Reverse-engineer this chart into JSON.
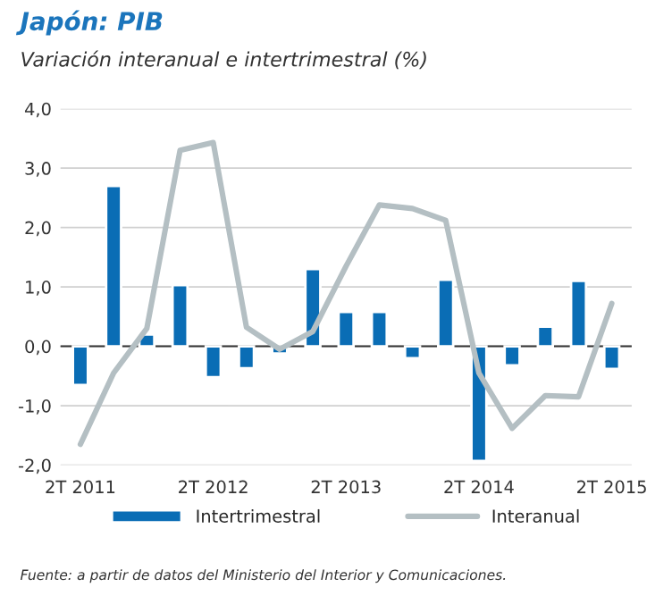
{
  "chart_data": {
    "type": "bar",
    "title": "Japón: PIB",
    "subtitle": "Variación interanual e intertrimestral (%)",
    "categories": [
      "2T 2011",
      null,
      null,
      null,
      "2T 2012",
      null,
      null,
      null,
      "2T 2013",
      null,
      null,
      null,
      "2T 2014",
      null,
      null,
      null,
      "2T 2015"
    ],
    "series": [
      {
        "name": "Intertrimestral",
        "color": "#0a6db5",
        "values": [
          -0.65,
          2.7,
          0.2,
          1.03,
          -0.52,
          -0.37,
          -0.12,
          1.3,
          0.58,
          0.58,
          -0.2,
          1.12,
          -1.93,
          -0.32,
          0.33,
          1.1,
          -0.38
        ]
      },
      {
        "name": "Interanual",
        "type": "line",
        "color": "#b4bfc3",
        "values": [
          -1.65,
          -0.45,
          0.3,
          3.3,
          3.43,
          0.32,
          -0.05,
          0.25,
          1.35,
          2.38,
          2.32,
          2.12,
          -0.45,
          -1.38,
          -0.83,
          -0.85,
          0.72
        ]
      }
    ],
    "ylim": [
      -2,
      4
    ],
    "yticks": [
      {
        "value": -2,
        "label": "-2,0"
      },
      {
        "value": -1,
        "label": "-1,0"
      },
      {
        "value": 0,
        "label": "0,0"
      },
      {
        "value": 1,
        "label": "1,0"
      },
      {
        "value": 2,
        "label": "2,0"
      },
      {
        "value": 3,
        "label": "3,0"
      },
      {
        "value": 4,
        "label": "4,0"
      }
    ],
    "grid": "y",
    "legend": "bottom",
    "annotations": [
      "Fuente: a partir de datos del Ministerio del Interior y Comunicaciones."
    ]
  }
}
